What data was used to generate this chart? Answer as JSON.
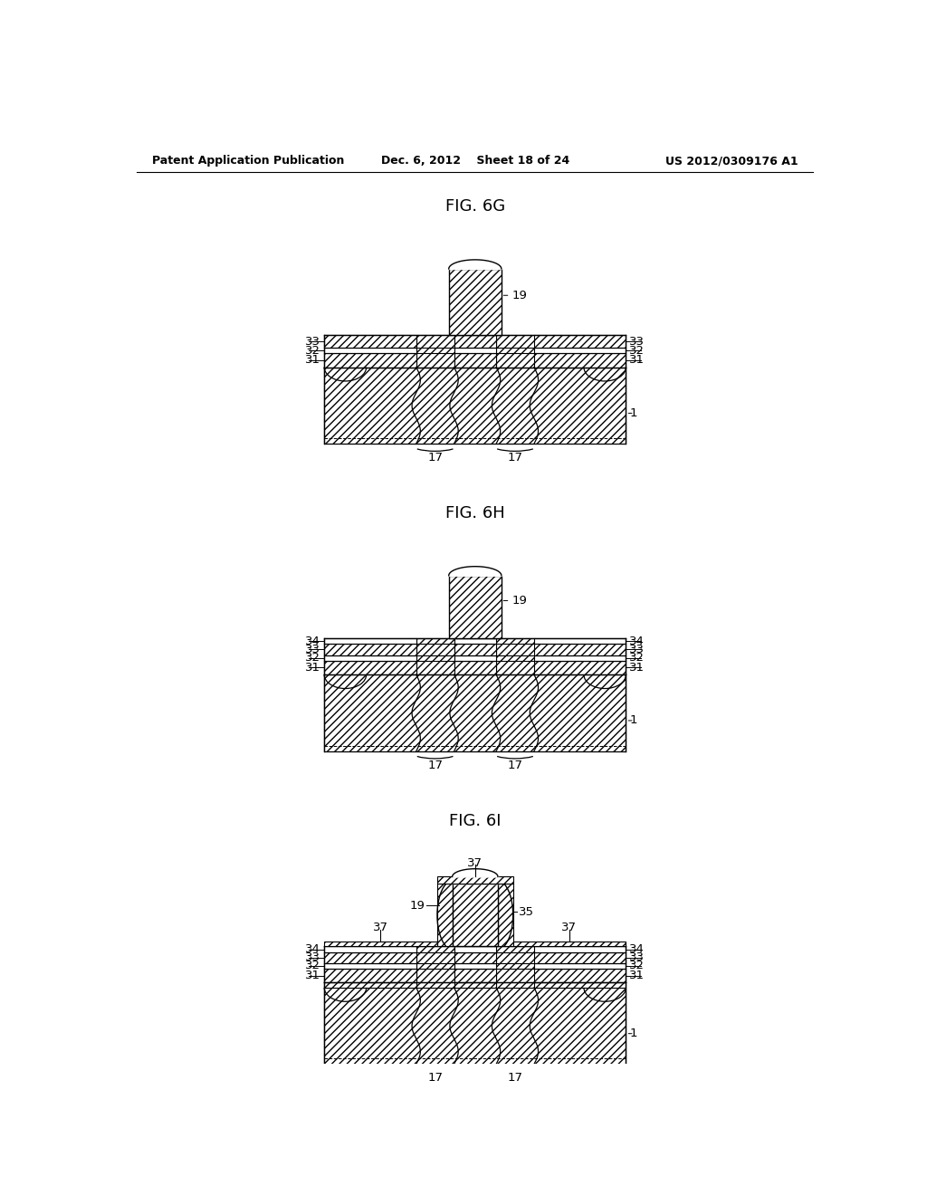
{
  "header_left": "Patent Application Publication",
  "header_mid": "Dec. 6, 2012    Sheet 18 of 24",
  "header_right": "US 2012/0309176 A1",
  "bg_color": "#ffffff"
}
